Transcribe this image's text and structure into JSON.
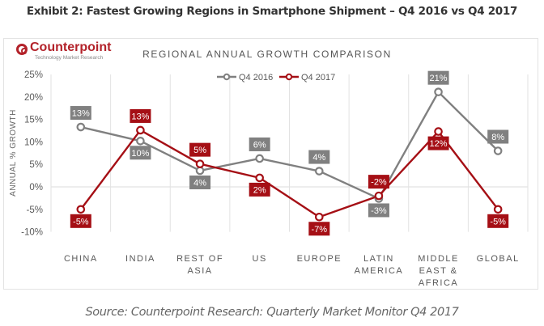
{
  "exhibit_title": "Exhibit 2: Fastest Growing Regions in Smartphone Shipment – Q4 2016 vs Q4 2017",
  "logo": {
    "name": "Counterpoint",
    "tagline": "Technology Market Research",
    "color": "#b3222a"
  },
  "source": "Source: Counterpoint Research: Quarterly Market Monitor Q4 2017",
  "chart_data": {
    "type": "line",
    "title": "REGIONAL ANNUAL GROWTH COMPARISON",
    "xlabel": "",
    "ylabel": "ANNUAL % GROWTH",
    "ylim": [
      -10,
      25
    ],
    "yticks": [
      25,
      20,
      15,
      10,
      5,
      0,
      -5,
      -10
    ],
    "ytick_labels": [
      "25%",
      "20%",
      "15%",
      "10%",
      "5%",
      "0%",
      "-5%",
      "-10%"
    ],
    "grid": true,
    "legend_position": "top-center",
    "categories": [
      "CHINA",
      "INDIA",
      "REST OF ASIA",
      "US",
      "EUROPE",
      "LATIN AMERICA",
      "MIDDLE EAST & AFRICA",
      "GLOBAL"
    ],
    "category_lines": [
      [
        "CHINA"
      ],
      [
        "INDIA"
      ],
      [
        "REST OF",
        "ASIA"
      ],
      [
        "US"
      ],
      [
        "EUROPE"
      ],
      [
        "LATIN",
        "AMERICA"
      ],
      [
        "MIDDLE",
        "EAST &",
        "AFRICA"
      ],
      [
        "GLOBAL"
      ]
    ],
    "series": [
      {
        "name": "Q4 2016",
        "color": "#808080",
        "values": [
          13.3,
          10.2,
          3.6,
          6.3,
          3.5,
          -2.6,
          21.1,
          8.0
        ],
        "labels": [
          "13%",
          "10%",
          "4%",
          "6%",
          "4%",
          "-3%",
          "21%",
          "8%"
        ],
        "label_positions": [
          "above",
          "below",
          "below",
          "above",
          "above",
          "below",
          "above",
          "above"
        ]
      },
      {
        "name": "Q4 2017",
        "color": "#a50f15",
        "values": [
          -5.0,
          12.6,
          5.1,
          2.0,
          -6.7,
          -2.0,
          12.3,
          -5.0
        ],
        "labels": [
          "-5%",
          "13%",
          "5%",
          "2%",
          "-7%",
          "-2%",
          "12%",
          "-5%"
        ],
        "label_positions": [
          "below",
          "above",
          "above",
          "below",
          "below",
          "above",
          "below",
          "below"
        ]
      }
    ]
  }
}
